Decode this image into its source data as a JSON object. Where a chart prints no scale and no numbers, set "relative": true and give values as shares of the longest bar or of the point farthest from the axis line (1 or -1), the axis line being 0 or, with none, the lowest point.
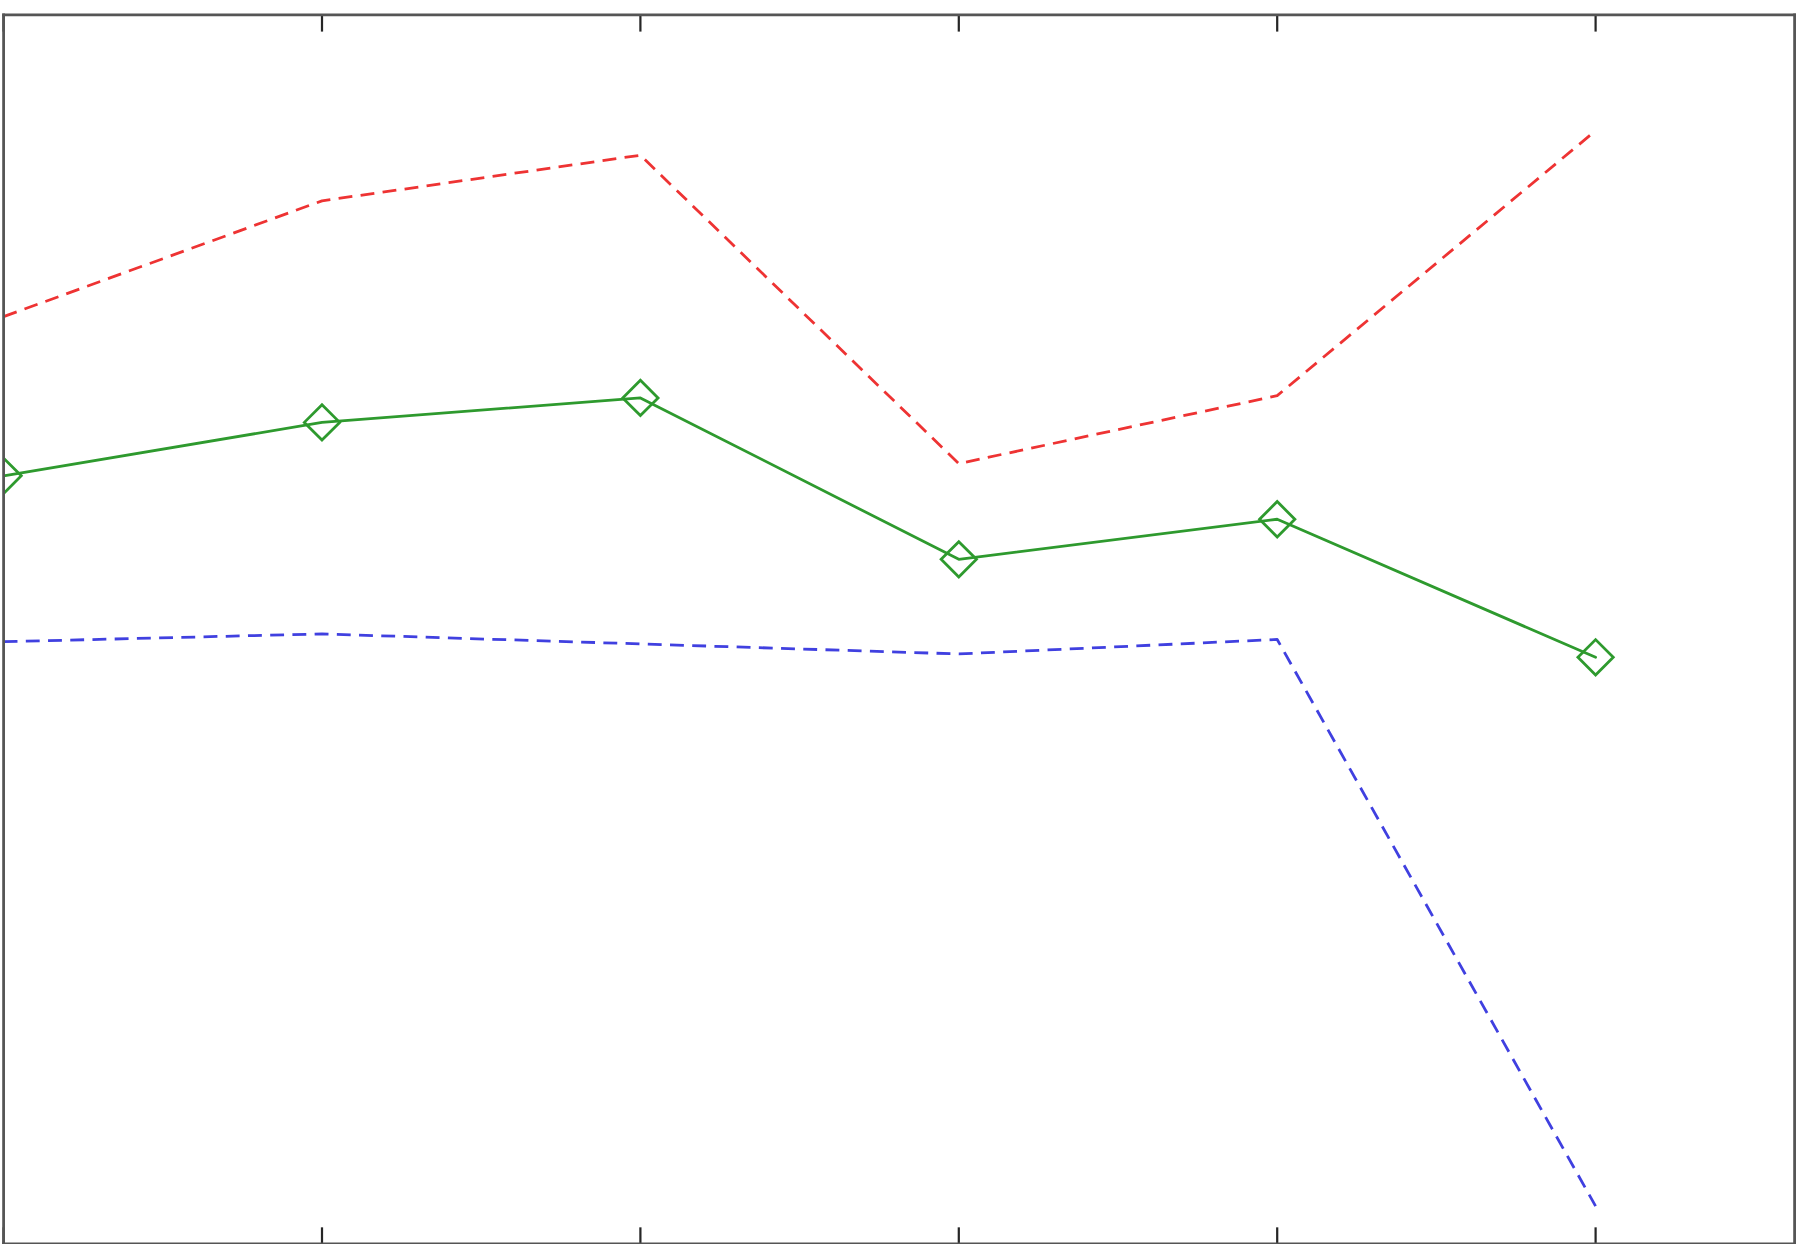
{
  "chart_data": {
    "type": "line",
    "relative": true,
    "grid": false,
    "legend": false,
    "categories": [
      null,
      null,
      null,
      null,
      null,
      null
    ],
    "series": [
      {
        "color": "#ee3333",
        "line_style": "dashed",
        "marker": "none",
        "values": [
          0.833,
          0.937,
          0.978,
          0.701,
          0.762,
          1
        ]
      },
      {
        "color": "#2e9a2e",
        "line_style": "solid",
        "marker": "diamond",
        "values": [
          0.69,
          0.738,
          0.76,
          0.615,
          0.651,
          0.527
        ]
      },
      {
        "color": "#4040e0",
        "line_style": "dashed",
        "marker": "none",
        "values": [
          0.541,
          0.548,
          0.539,
          0.53,
          0.543,
          0.034
        ]
      }
    ]
  }
}
